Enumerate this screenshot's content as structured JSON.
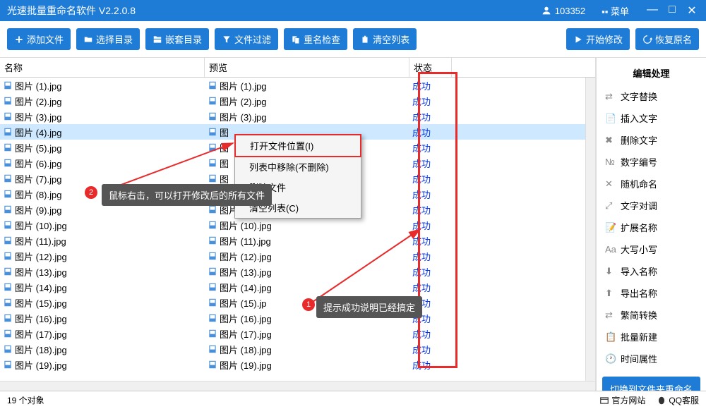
{
  "title": "光速批量重命名软件 V2.2.0.8",
  "user_id": "103352",
  "menu_label": "菜单",
  "toolbar": {
    "add_file": "添加文件",
    "select_dir": "选择目录",
    "nested_dir": "嵌套目录",
    "file_filter": "文件过滤",
    "dup_check": "重名检查",
    "clear_list": "清空列表",
    "start_modify": "开始修改",
    "restore_name": "恢复原名"
  },
  "columns": {
    "name": "名称",
    "preview": "预览",
    "status": "状态"
  },
  "files": [
    {
      "name": "图片 (1).jpg",
      "preview": "图片 (1).jpg",
      "status": "成功"
    },
    {
      "name": "图片 (2).jpg",
      "preview": "图片 (2).jpg",
      "status": "成功"
    },
    {
      "name": "图片 (3).jpg",
      "preview": "图片 (3).jpg",
      "status": "成功"
    },
    {
      "name": "图片 (4).jpg",
      "preview": "图",
      "status": "成功"
    },
    {
      "name": "图片 (5).jpg",
      "preview": "图",
      "status": "成功"
    },
    {
      "name": "图片 (6).jpg",
      "preview": "图",
      "status": "成功"
    },
    {
      "name": "图片 (7).jpg",
      "preview": "图",
      "status": "成功"
    },
    {
      "name": "图片 (8).jpg",
      "preview": "图",
      "status": "成功"
    },
    {
      "name": "图片 (9).jpg",
      "preview": "图片 (9).jpg",
      "status": "成功"
    },
    {
      "name": "图片 (10).jpg",
      "preview": "图片 (10).jpg",
      "status": "成功"
    },
    {
      "name": "图片 (11).jpg",
      "preview": "图片 (11).jpg",
      "status": "成功"
    },
    {
      "name": "图片 (12).jpg",
      "preview": "图片 (12).jpg",
      "status": "成功"
    },
    {
      "name": "图片 (13).jpg",
      "preview": "图片 (13).jpg",
      "status": "成功"
    },
    {
      "name": "图片 (14).jpg",
      "preview": "图片 (14).jpg",
      "status": "成功"
    },
    {
      "name": "图片 (15).jpg",
      "preview": "图片 (15).jp",
      "status": "成功"
    },
    {
      "name": "图片 (16).jpg",
      "preview": "图片 (16).jpg",
      "status": "成功"
    },
    {
      "name": "图片 (17).jpg",
      "preview": "图片 (17).jpg",
      "status": "成功"
    },
    {
      "name": "图片 (18).jpg",
      "preview": "图片 (18).jpg",
      "status": "成功"
    },
    {
      "name": "图片 (19).jpg",
      "preview": "图片 (19).jpg",
      "status": "成功"
    }
  ],
  "selected_row_index": 3,
  "context_menu": [
    "打开文件位置(I)",
    "列表中移除(不删除)",
    "删除文件",
    "清空列表(C)"
  ],
  "sidebar": {
    "title": "编辑处理",
    "items": [
      "文字替换",
      "插入文字",
      "删除文字",
      "数字编号",
      "随机命名",
      "文字对调",
      "扩展名称",
      "大写小写",
      "导入名称",
      "导出名称",
      "繁简转换",
      "批量新建",
      "时间属性"
    ],
    "switch_btn": "切换到文件夹重命名"
  },
  "callouts": {
    "c1": "提示成功说明已经搞定",
    "c2": "鼠标右击，可以打开修改后的所有文件"
  },
  "statusbar": {
    "count_text": "19 个对象",
    "official_site": "官方网站",
    "qq_service": "QQ客服"
  },
  "colors": {
    "primary": "#1e7cd6",
    "highlight_red": "#e82a2a",
    "status_text": "#0033ee",
    "callout_bg": "#555555"
  }
}
